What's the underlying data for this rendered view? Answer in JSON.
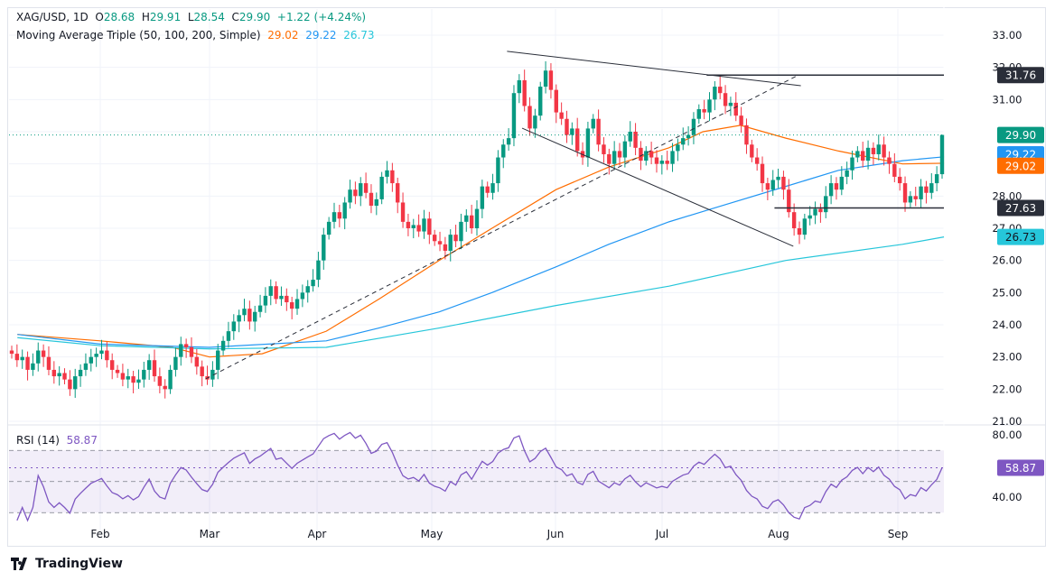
{
  "header": {
    "symbol": "XAG/USD, 1D",
    "open_label": "O",
    "open": "28.68",
    "high_label": "H",
    "high": "29.91",
    "low_label": "L",
    "low": "28.54",
    "close_label": "C",
    "close": "29.90",
    "change": "+1.22 (+4.24%)",
    "ma_title": "Moving Average Triple (50, 100, 200, Simple)",
    "ma50": "29.02",
    "ma100": "29.22",
    "ma200": "26.73"
  },
  "rsi_legend": {
    "title": "RSI (14)",
    "value": "58.87"
  },
  "brand": "TradingView",
  "colors": {
    "up": "#089981",
    "down": "#f23645",
    "ma50": "#ff6d00",
    "ma100": "#2196f3",
    "ma200": "#26c6da",
    "rsi": "#7e57c2",
    "level": "#2a2e39"
  },
  "chart_data": {
    "type": "candlestick",
    "ylim": [
      21,
      33
    ],
    "y_ticks": [
      "33.00",
      "32.00",
      "31.00",
      "30.00",
      "29.00",
      "28.00",
      "27.00",
      "26.00",
      "25.00",
      "24.00",
      "23.00",
      "22.00",
      "21.00"
    ],
    "x_ticks": [
      "Feb",
      "Mar",
      "Apr",
      "May",
      "Jun",
      "Jul",
      "Aug",
      "Sep"
    ],
    "last_bar": {
      "open": 28.68,
      "high": 29.91,
      "low": 28.54,
      "close": 29.9
    },
    "closes": [
      23.1,
      22.9,
      23.0,
      22.6,
      22.8,
      23.2,
      23.0,
      22.6,
      22.4,
      22.5,
      22.3,
      22.0,
      22.4,
      22.6,
      22.8,
      23.0,
      23.1,
      23.2,
      22.9,
      22.6,
      22.5,
      22.3,
      22.4,
      22.2,
      22.3,
      22.6,
      22.9,
      22.4,
      22.1,
      22.0,
      22.6,
      23.0,
      23.4,
      23.3,
      23.0,
      22.7,
      22.4,
      22.3,
      22.6,
      23.2,
      23.5,
      23.8,
      24.1,
      24.3,
      24.5,
      24.1,
      24.4,
      24.6,
      24.9,
      25.2,
      24.8,
      24.9,
      24.7,
      24.5,
      24.8,
      25.0,
      25.2,
      25.4,
      26.0,
      26.8,
      27.2,
      27.5,
      27.3,
      27.8,
      28.2,
      28.0,
      28.4,
      28.1,
      27.7,
      27.9,
      28.6,
      28.8,
      28.4,
      27.8,
      27.2,
      27.0,
      27.1,
      26.9,
      27.3,
      26.8,
      26.6,
      26.5,
      26.3,
      26.8,
      26.6,
      27.2,
      27.4,
      27.0,
      27.6,
      28.3,
      28.1,
      28.4,
      29.2,
      29.6,
      29.8,
      31.2,
      31.6,
      30.8,
      30.1,
      30.5,
      31.4,
      31.9,
      31.3,
      30.6,
      30.4,
      29.9,
      30.1,
      29.4,
      29.2,
      30.1,
      30.4,
      29.6,
      29.3,
      29.0,
      29.4,
      29.2,
      29.7,
      30.0,
      29.5,
      29.1,
      29.4,
      29.2,
      29.0,
      29.1,
      29.0,
      29.4,
      29.6,
      29.8,
      29.9,
      30.4,
      30.7,
      30.6,
      31.0,
      31.4,
      31.2,
      30.8,
      30.9,
      30.5,
      30.2,
      29.6,
      29.2,
      29.0,
      28.4,
      28.2,
      28.5,
      28.6,
      28.2,
      27.5,
      27.0,
      26.8,
      27.3,
      27.4,
      27.6,
      27.5,
      28.0,
      28.4,
      28.2,
      28.6,
      28.8,
      29.2,
      29.4,
      29.1,
      29.5,
      29.3,
      29.6,
      29.2,
      29.0,
      28.6,
      28.4,
      27.8,
      28.0,
      27.9,
      28.3,
      28.1,
      28.4,
      28.68,
      29.9
    ],
    "series": [
      {
        "name": "50",
        "values": [
          [
            "01-10",
            23.7
          ],
          [
            "02-01",
            23.5
          ],
          [
            "02-20",
            23.3
          ],
          [
            "03-01",
            23.0
          ],
          [
            "03-15",
            23.1
          ],
          [
            "04-01",
            23.8
          ],
          [
            "04-15",
            24.8
          ],
          [
            "05-01",
            26.0
          ],
          [
            "05-15",
            27.0
          ],
          [
            "06-01",
            28.2
          ],
          [
            "06-15",
            28.9
          ],
          [
            "07-01",
            29.5
          ],
          [
            "07-10",
            30.0
          ],
          [
            "07-20",
            30.2
          ],
          [
            "08-01",
            29.8
          ],
          [
            "08-15",
            29.4
          ],
          [
            "09-01",
            29.0
          ],
          [
            "09-12",
            29.02
          ]
        ]
      },
      {
        "name": "100",
        "values": [
          [
            "01-10",
            23.7
          ],
          [
            "02-01",
            23.4
          ],
          [
            "03-01",
            23.3
          ],
          [
            "04-01",
            23.5
          ],
          [
            "04-15",
            23.9
          ],
          [
            "05-01",
            24.4
          ],
          [
            "05-15",
            25.0
          ],
          [
            "06-01",
            25.8
          ],
          [
            "06-15",
            26.5
          ],
          [
            "07-01",
            27.2
          ],
          [
            "07-15",
            27.7
          ],
          [
            "08-01",
            28.3
          ],
          [
            "08-15",
            28.8
          ],
          [
            "09-01",
            29.1
          ],
          [
            "09-12",
            29.22
          ]
        ]
      },
      {
        "name": "200",
        "values": [
          [
            "01-10",
            23.6
          ],
          [
            "02-01",
            23.35
          ],
          [
            "03-01",
            23.25
          ],
          [
            "04-01",
            23.3
          ],
          [
            "05-01",
            23.9
          ],
          [
            "06-01",
            24.6
          ],
          [
            "07-01",
            25.2
          ],
          [
            "08-01",
            26.0
          ],
          [
            "09-01",
            26.5
          ],
          [
            "09-12",
            26.73
          ]
        ]
      }
    ],
    "drawings": [
      {
        "style": "dashed",
        "from": [
          "02-29",
          22.32
        ],
        "to": [
          "08-04",
          31.74
        ]
      },
      {
        "style": "solid",
        "from": [
          "05-19",
          32.5
        ],
        "to": [
          "08-05",
          31.43
        ]
      },
      {
        "style": "solid",
        "from": [
          "05-23",
          30.11
        ],
        "to": [
          "08-03",
          26.44
        ]
      },
      {
        "style": "horizontal",
        "from": [
          "07-11",
          31.76
        ],
        "price_label": "31.76"
      },
      {
        "style": "horizontal",
        "from": [
          "07-29",
          27.63
        ],
        "price_label": "27.63"
      }
    ],
    "rsi": {
      "period": 14,
      "ylim": [
        20,
        90
      ],
      "levels": [
        70,
        50,
        30
      ],
      "y_ticks": [
        "80.00",
        "40.00"
      ],
      "last": 58.87
    }
  }
}
